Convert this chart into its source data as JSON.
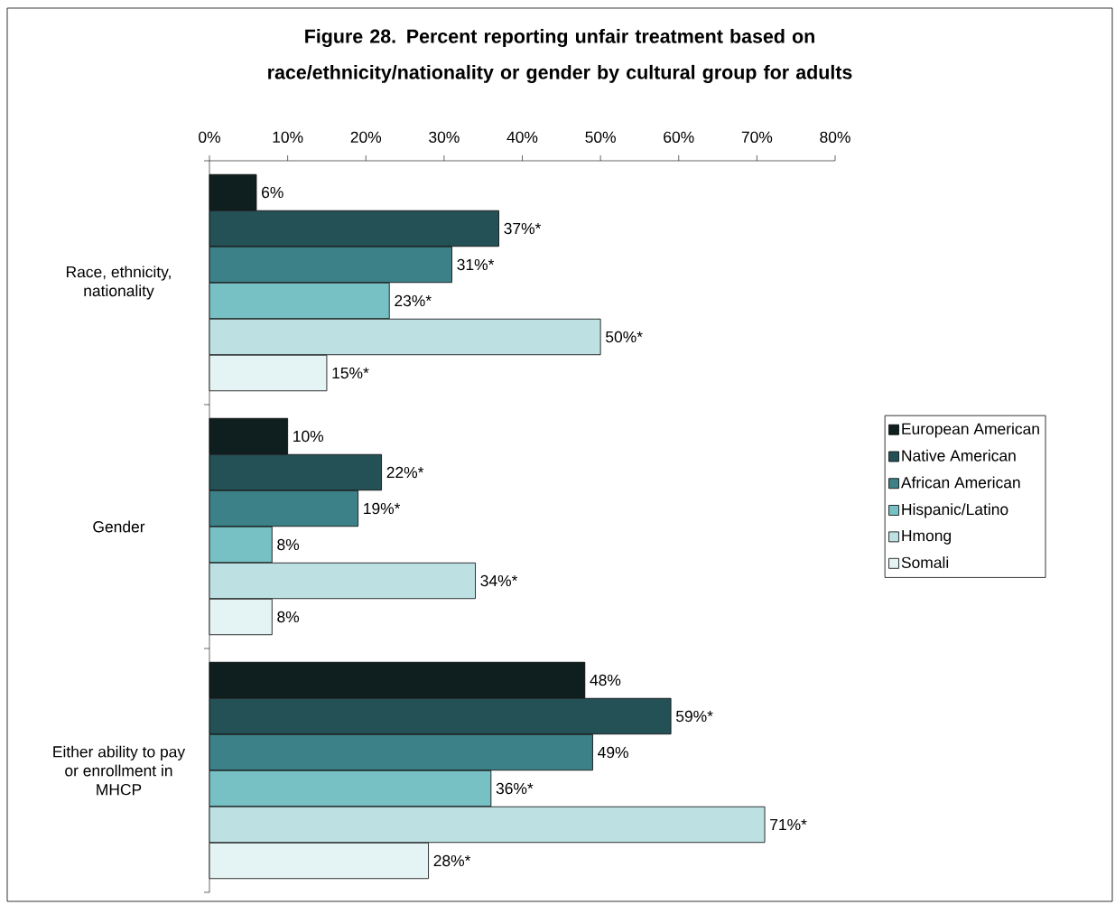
{
  "chart_data": {
    "type": "bar",
    "orientation": "horizontal",
    "title": "Figure 28.  Percent reporting unfair treatment based on race/ethnicity/nationality or gender by cultural group for adults",
    "categories": [
      "Race, ethnicity, nationality",
      "Gender",
      "Either ability to pay or enrollment in MHCP"
    ],
    "series": [
      {
        "name": "European American",
        "color": "#0f1f1f",
        "values": [
          6,
          10,
          48
        ],
        "value_labels": [
          "6%",
          "10%",
          "48%"
        ]
      },
      {
        "name": "Native American",
        "color": "#245156",
        "values": [
          37,
          22,
          59
        ],
        "value_labels": [
          "37%*",
          "22%*",
          "59%*"
        ]
      },
      {
        "name": "African American",
        "color": "#3b8187",
        "values": [
          31,
          19,
          49
        ],
        "value_labels": [
          "31%*",
          "19%*",
          "49%"
        ]
      },
      {
        "name": "Hispanic/Latino",
        "color": "#77c0c4",
        "values": [
          23,
          8,
          36
        ],
        "value_labels": [
          "23%*",
          "8%",
          "36%*"
        ]
      },
      {
        "name": "Hmong",
        "color": "#bde1e3",
        "values": [
          50,
          34,
          71
        ],
        "value_labels": [
          "50%*",
          "34%*",
          "71%*"
        ]
      },
      {
        "name": "Somali",
        "color": "#e4f3f3",
        "values": [
          15,
          8,
          28
        ],
        "value_labels": [
          "15%*",
          "8%",
          "28%*"
        ]
      }
    ],
    "xlim": [
      0,
      80
    ],
    "xticks": [
      {
        "value": 0,
        "label": "0%"
      },
      {
        "value": 10,
        "label": "10%"
      },
      {
        "value": 20,
        "label": "20%"
      },
      {
        "value": 30,
        "label": "30%"
      },
      {
        "value": 40,
        "label": "40%"
      },
      {
        "value": 50,
        "label": "50%"
      },
      {
        "value": 60,
        "label": "60%"
      },
      {
        "value": 70,
        "label": "70%"
      },
      {
        "value": 80,
        "label": "80%"
      }
    ],
    "grid": false,
    "legend": "right"
  }
}
